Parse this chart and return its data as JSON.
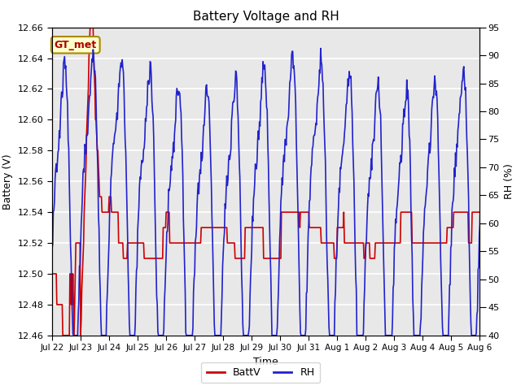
{
  "title": "Battery Voltage and RH",
  "xlabel": "Time",
  "ylabel_left": "Battery (V)",
  "ylabel_right": "RH (%)",
  "ylim_left": [
    12.46,
    12.66
  ],
  "ylim_right": [
    40,
    95
  ],
  "yticks_left": [
    12.46,
    12.48,
    12.5,
    12.52,
    12.54,
    12.56,
    12.58,
    12.6,
    12.62,
    12.64,
    12.66
  ],
  "yticks_right": [
    40,
    45,
    50,
    55,
    60,
    65,
    70,
    75,
    80,
    85,
    90,
    95
  ],
  "xtick_labels": [
    "Jul 22",
    "Jul 23",
    "Jul 24",
    "Jul 25",
    "Jul 26",
    "Jul 27",
    "Jul 28",
    "Jul 29",
    "Jul 30",
    "Jul 31",
    "Aug 1",
    "Aug 2",
    "Aug 3",
    "Aug 4",
    "Aug 5",
    "Aug 6"
  ],
  "legend_labels": [
    "BattV",
    "RH"
  ],
  "legend_colors": [
    "#cc0000",
    "#2222cc"
  ],
  "annotation_text": "GT_met",
  "annotation_fgcolor": "#aa0000",
  "annotation_bg": "#ffffcc",
  "annotation_edgecolor": "#aa8800",
  "plot_bg_color": "#e8e8e8",
  "battv_color": "#cc0000",
  "rh_color": "#2222cc",
  "grid_color": "#ffffff",
  "fig_bg": "#ffffff"
}
